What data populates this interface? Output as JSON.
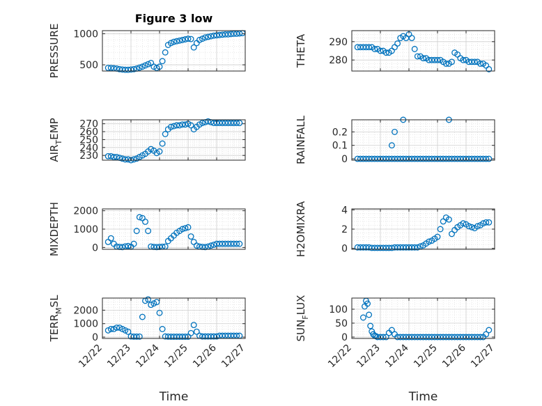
{
  "figure": {
    "title": "Figure 3 low",
    "xlabel": "Time"
  },
  "x_ticks": [
    "12/22",
    "12/23",
    "12/24",
    "12/25",
    "12/26",
    "12/27"
  ],
  "colors": {
    "marker": "#0072bd",
    "axis": "#262626",
    "grid": "#d9d9d9"
  },
  "chart_data": [
    {
      "type": "scatter",
      "ylabel": "PRESSURE",
      "ylabel_sub": "",
      "ylabel_sub_after": "",
      "xlim": [
        0,
        5
      ],
      "ylim": [
        400,
        1050
      ],
      "yticks": [
        500,
        1000
      ],
      "ytick_labels": [
        "500",
        "1000"
      ],
      "title": "Figure 3 low",
      "x": [
        0.2,
        0.3,
        0.4,
        0.5,
        0.6,
        0.7,
        0.8,
        0.9,
        1.0,
        1.1,
        1.2,
        1.3,
        1.4,
        1.5,
        1.6,
        1.7,
        1.8,
        1.9,
        2.0,
        2.1,
        2.2,
        2.3,
        2.4,
        2.5,
        2.6,
        2.7,
        2.8,
        2.9,
        3.0,
        3.1,
        3.2,
        3.3,
        3.4,
        3.5,
        3.6,
        3.7,
        3.8,
        3.9,
        4.0,
        4.1,
        4.2,
        4.3,
        4.4,
        4.5,
        4.6,
        4.7,
        4.8,
        4.9
      ],
      "y": [
        450,
        450,
        445,
        440,
        430,
        425,
        420,
        420,
        425,
        430,
        440,
        455,
        470,
        490,
        510,
        530,
        470,
        450,
        470,
        560,
        700,
        820,
        850,
        870,
        880,
        890,
        900,
        910,
        920,
        915,
        780,
        850,
        900,
        920,
        940,
        950,
        960,
        970,
        975,
        980,
        985,
        990,
        990,
        995,
        1000,
        1000,
        1005,
        1010
      ]
    },
    {
      "type": "scatter",
      "ylabel": "THETA",
      "ylabel_sub": "",
      "ylabel_sub_after": "",
      "xlim": [
        0,
        5
      ],
      "ylim": [
        274,
        296
      ],
      "yticks": [
        280,
        290
      ],
      "ytick_labels": [
        "280",
        "290"
      ],
      "x": [
        0.2,
        0.3,
        0.4,
        0.5,
        0.6,
        0.7,
        0.8,
        0.9,
        1.0,
        1.1,
        1.2,
        1.3,
        1.4,
        1.5,
        1.6,
        1.7,
        1.8,
        1.9,
        2.0,
        2.1,
        2.2,
        2.3,
        2.4,
        2.5,
        2.6,
        2.7,
        2.8,
        2.9,
        3.0,
        3.1,
        3.2,
        3.3,
        3.4,
        3.5,
        3.6,
        3.7,
        3.8,
        3.9,
        4.0,
        4.1,
        4.2,
        4.3,
        4.4,
        4.5,
        4.6,
        4.7,
        4.8
      ],
      "y": [
        287,
        287,
        287,
        287,
        287,
        287,
        286,
        286,
        285,
        285,
        284,
        284,
        285,
        287,
        289,
        292,
        293,
        292,
        294,
        292,
        286,
        282,
        282,
        281,
        281,
        280,
        280,
        280,
        280,
        280,
        279,
        278,
        278,
        279,
        284,
        283,
        281,
        280,
        280,
        279,
        279,
        279,
        279,
        278,
        278,
        277,
        275
      ]
    },
    {
      "type": "scatter",
      "ylabel": "AIR",
      "ylabel_sub": "T",
      "ylabel_sub_after": "EMP",
      "xlim": [
        0,
        5
      ],
      "ylim": [
        224,
        275
      ],
      "yticks": [
        230,
        240,
        250,
        260,
        270
      ],
      "ytick_labels": [
        "230",
        "240",
        "250",
        "260",
        "270"
      ],
      "x": [
        0.2,
        0.3,
        0.4,
        0.5,
        0.6,
        0.7,
        0.8,
        0.9,
        1.0,
        1.1,
        1.2,
        1.3,
        1.4,
        1.5,
        1.6,
        1.7,
        1.8,
        1.9,
        2.0,
        2.1,
        2.2,
        2.3,
        2.4,
        2.5,
        2.6,
        2.7,
        2.8,
        2.9,
        3.0,
        3.1,
        3.2,
        3.3,
        3.4,
        3.5,
        3.6,
        3.7,
        3.8,
        3.9,
        4.0,
        4.1,
        4.2,
        4.3,
        4.4,
        4.5,
        4.6,
        4.7,
        4.8
      ],
      "y": [
        229,
        229,
        228,
        228,
        227,
        226,
        225,
        225,
        224,
        225,
        226,
        228,
        230,
        232,
        235,
        238,
        236,
        233,
        235,
        245,
        257,
        263,
        266,
        267,
        268,
        268,
        269,
        269,
        270,
        268,
        263,
        266,
        269,
        271,
        272,
        273,
        272,
        271,
        271,
        271,
        271,
        271,
        271,
        271,
        271,
        271,
        271
      ]
    },
    {
      "type": "scatter",
      "ylabel": "RAINFALL",
      "ylabel_sub": "",
      "ylabel_sub_after": "",
      "xlim": [
        0,
        5
      ],
      "ylim": [
        -0.01,
        0.29
      ],
      "yticks": [
        0,
        0.1,
        0.2
      ],
      "ytick_labels": [
        "0",
        "0.1",
        "0.2"
      ],
      "x": [
        0.2,
        0.3,
        0.4,
        0.5,
        0.6,
        0.7,
        0.8,
        0.9,
        1.0,
        1.1,
        1.2,
        1.3,
        1.4,
        1.5,
        1.6,
        1.7,
        1.8,
        1.9,
        2.0,
        2.1,
        2.2,
        2.3,
        2.4,
        2.5,
        2.6,
        2.7,
        2.8,
        2.9,
        3.0,
        3.1,
        3.2,
        3.3,
        3.4,
        3.5,
        3.6,
        3.7,
        3.8,
        3.9,
        4.0,
        4.1,
        4.2,
        4.3,
        4.4,
        4.5,
        4.6,
        4.7,
        4.8,
        1.4,
        1.5,
        1.8,
        3.4
      ],
      "y": [
        0,
        0,
        0,
        0,
        0,
        0,
        0,
        0,
        0,
        0,
        0,
        0,
        0,
        0,
        0,
        0,
        0,
        0,
        0,
        0,
        0,
        0,
        0,
        0,
        0,
        0,
        0,
        0,
        0,
        0,
        0,
        0,
        0,
        0,
        0,
        0,
        0,
        0,
        0,
        0,
        0,
        0,
        0,
        0,
        0,
        0,
        0,
        0.1,
        0.2,
        0.29,
        0.29
      ]
    },
    {
      "type": "scatter",
      "ylabel": "MIXDEPTH",
      "ylabel_sub": "",
      "ylabel_sub_after": "",
      "xlim": [
        0,
        5
      ],
      "ylim": [
        -100,
        2100
      ],
      "yticks": [
        0,
        1000,
        2000
      ],
      "ytick_labels": [
        "0",
        "1000",
        "2000"
      ],
      "x": [
        0.2,
        0.3,
        0.4,
        0.5,
        0.6,
        0.7,
        0.8,
        0.9,
        1.0,
        1.1,
        1.2,
        1.3,
        1.4,
        1.5,
        1.6,
        1.7,
        1.8,
        1.9,
        2.0,
        2.1,
        2.2,
        2.3,
        2.4,
        2.5,
        2.6,
        2.7,
        2.8,
        2.9,
        3.0,
        3.1,
        3.2,
        3.3,
        3.4,
        3.5,
        3.6,
        3.7,
        3.8,
        3.9,
        4.0,
        4.1,
        4.2,
        4.3,
        4.4,
        4.5,
        4.6,
        4.7,
        4.8
      ],
      "y": [
        300,
        500,
        200,
        50,
        30,
        20,
        60,
        80,
        40,
        200,
        900,
        1650,
        1600,
        1400,
        900,
        50,
        30,
        20,
        30,
        40,
        50,
        350,
        500,
        650,
        800,
        900,
        1000,
        1050,
        1100,
        600,
        300,
        100,
        50,
        30,
        20,
        50,
        100,
        150,
        200,
        200,
        200,
        200,
        200,
        200,
        200,
        200,
        200
      ]
    },
    {
      "type": "scatter",
      "ylabel": "H2OMIXRA",
      "ylabel_sub": "",
      "ylabel_sub_after": "",
      "xlim": [
        0,
        5
      ],
      "ylim": [
        -0.1,
        4.1
      ],
      "yticks": [
        0,
        2,
        4
      ],
      "ytick_labels": [
        "0",
        "2",
        "4"
      ],
      "x": [
        0.2,
        0.3,
        0.4,
        0.5,
        0.6,
        0.7,
        0.8,
        0.9,
        1.0,
        1.1,
        1.2,
        1.3,
        1.4,
        1.5,
        1.6,
        1.7,
        1.8,
        1.9,
        2.0,
        2.1,
        2.2,
        2.3,
        2.4,
        2.5,
        2.6,
        2.7,
        2.8,
        2.9,
        3.0,
        3.1,
        3.2,
        3.3,
        3.4,
        3.5,
        3.6,
        3.7,
        3.8,
        3.9,
        4.0,
        4.1,
        4.2,
        4.3,
        4.4,
        4.5,
        4.6,
        4.7,
        4.8
      ],
      "y": [
        0.1,
        0.1,
        0.1,
        0.1,
        0.1,
        0.05,
        0.05,
        0.05,
        0.05,
        0.05,
        0.05,
        0.05,
        0.05,
        0.1,
        0.1,
        0.1,
        0.1,
        0.1,
        0.1,
        0.1,
        0.1,
        0.1,
        0.2,
        0.3,
        0.5,
        0.7,
        0.8,
        1.0,
        1.2,
        2.0,
        2.8,
        3.2,
        3.0,
        1.5,
        1.9,
        2.2,
        2.4,
        2.6,
        2.5,
        2.3,
        2.2,
        2.1,
        2.3,
        2.4,
        2.6,
        2.7,
        2.7
      ]
    },
    {
      "type": "scatter",
      "ylabel": "TERR",
      "ylabel_sub": "M",
      "ylabel_sub_after": "SL",
      "xlim": [
        0,
        5
      ],
      "ylim": [
        -100,
        2900
      ],
      "yticks": [
        0,
        1000,
        2000
      ],
      "ytick_labels": [
        "0",
        "1000",
        "2000"
      ],
      "x": [
        0.2,
        0.3,
        0.4,
        0.5,
        0.6,
        0.7,
        0.8,
        0.9,
        1.0,
        1.1,
        1.2,
        1.3,
        1.4,
        1.5,
        1.6,
        1.7,
        1.8,
        1.9,
        2.0,
        2.1,
        2.2,
        2.3,
        2.4,
        2.5,
        2.6,
        2.7,
        2.8,
        2.9,
        3.0,
        3.1,
        3.2,
        3.3,
        3.4,
        3.5,
        3.6,
        3.7,
        3.8,
        3.9,
        4.0,
        4.1,
        4.2,
        4.3,
        4.4,
        4.5,
        4.6,
        4.7,
        4.8
      ],
      "y": [
        500,
        600,
        600,
        700,
        700,
        600,
        500,
        400,
        50,
        40,
        40,
        40,
        1500,
        2700,
        2800,
        2400,
        2500,
        2600,
        1800,
        600,
        50,
        40,
        30,
        30,
        30,
        30,
        30,
        30,
        30,
        300,
        900,
        400,
        100,
        50,
        50,
        50,
        50,
        50,
        50,
        100,
        100,
        100,
        100,
        100,
        100,
        100,
        100
      ]
    },
    {
      "type": "scatter",
      "ylabel": "SUN",
      "ylabel_sub": "F",
      "ylabel_sub_after": "LUX",
      "xlim": [
        0,
        5
      ],
      "ylim": [
        -5,
        140
      ],
      "yticks": [
        0,
        50,
        100
      ],
      "ytick_labels": [
        "0",
        "50",
        "100"
      ],
      "x": [
        0.4,
        0.45,
        0.5,
        0.55,
        0.6,
        0.65,
        0.7,
        0.75,
        0.8,
        0.85,
        0.9,
        1.0,
        1.1,
        1.2,
        1.3,
        1.4,
        1.5,
        1.6,
        1.7,
        1.8,
        1.9,
        2.0,
        2.1,
        2.2,
        2.3,
        2.4,
        2.5,
        2.6,
        2.7,
        2.8,
        2.9,
        3.0,
        3.1,
        3.2,
        3.3,
        3.4,
        3.5,
        3.6,
        3.7,
        3.8,
        3.9,
        4.0,
        4.1,
        4.2,
        4.3,
        4.4,
        4.5,
        4.6,
        4.7,
        4.8
      ],
      "y": [
        70,
        110,
        130,
        120,
        80,
        40,
        20,
        10,
        5,
        3,
        0,
        0,
        0,
        0,
        15,
        25,
        10,
        0,
        0,
        0,
        0,
        0,
        0,
        0,
        0,
        0,
        0,
        0,
        0,
        0,
        0,
        0,
        0,
        0,
        0,
        0,
        0,
        0,
        0,
        0,
        0,
        0,
        0,
        0,
        0,
        0,
        0,
        0,
        10,
        25
      ]
    }
  ]
}
